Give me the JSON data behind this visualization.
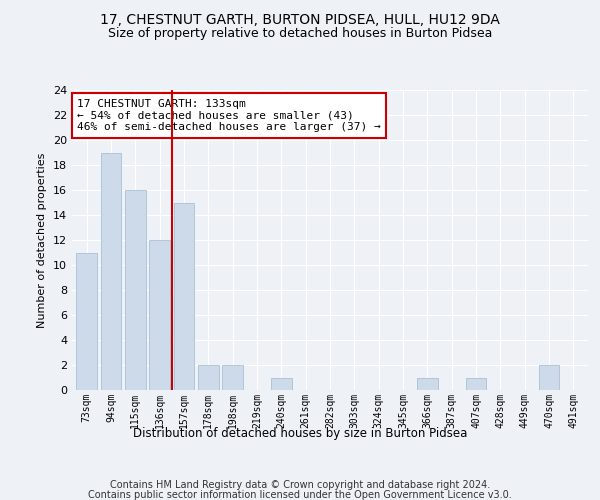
{
  "title": "17, CHESTNUT GARTH, BURTON PIDSEA, HULL, HU12 9DA",
  "subtitle": "Size of property relative to detached houses in Burton Pidsea",
  "xlabel": "Distribution of detached houses by size in Burton Pidsea",
  "ylabel": "Number of detached properties",
  "categories": [
    "73sqm",
    "94sqm",
    "115sqm",
    "136sqm",
    "157sqm",
    "178sqm",
    "198sqm",
    "219sqm",
    "240sqm",
    "261sqm",
    "282sqm",
    "303sqm",
    "324sqm",
    "345sqm",
    "366sqm",
    "387sqm",
    "407sqm",
    "428sqm",
    "449sqm",
    "470sqm",
    "491sqm"
  ],
  "values": [
    11,
    19,
    16,
    12,
    15,
    2,
    2,
    0,
    1,
    0,
    0,
    0,
    0,
    0,
    1,
    0,
    1,
    0,
    0,
    2,
    0
  ],
  "bar_color": "#ccdaea",
  "bar_edgecolor": "#a8c0d6",
  "annotation_text": "17 CHESTNUT GARTH: 133sqm\n← 54% of detached houses are smaller (43)\n46% of semi-detached houses are larger (37) →",
  "annotation_box_color": "#ffffff",
  "annotation_box_edgecolor": "#cc0000",
  "vline_color": "#cc0000",
  "vline_x_index": 3.5,
  "ylim": [
    0,
    24
  ],
  "yticks": [
    0,
    2,
    4,
    6,
    8,
    10,
    12,
    14,
    16,
    18,
    20,
    22,
    24
  ],
  "footer_line1": "Contains HM Land Registry data © Crown copyright and database right 2024.",
  "footer_line2": "Contains public sector information licensed under the Open Government Licence v3.0.",
  "bg_color": "#eef2f7",
  "grid_color": "#ffffff",
  "title_fontsize": 10,
  "subtitle_fontsize": 9,
  "annotation_fontsize": 8,
  "footer_fontsize": 7
}
